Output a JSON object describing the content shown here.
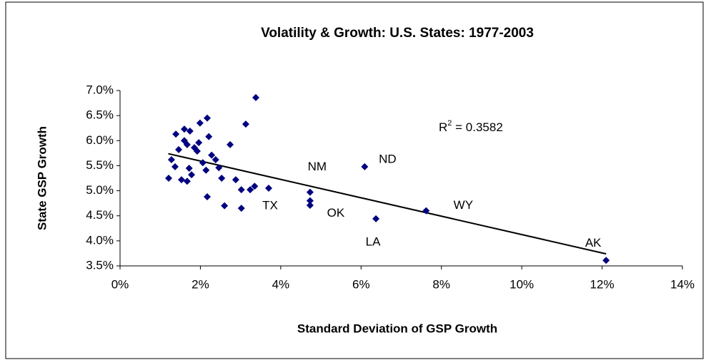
{
  "chart_data": {
    "type": "scatter",
    "title": "Volatility & Growth:  U.S. States:  1977-2003",
    "x_label": "Standard Deviation of GSP Growth",
    "y_label": "State GSP Growth",
    "color": "#000080",
    "x": [
      1.21,
      1.39,
      1.6,
      1.28,
      1.37,
      1.46,
      1.53,
      1.67,
      1.67,
      1.78,
      1.72,
      1.85,
      1.96,
      1.99,
      2.17,
      2.21,
      2.06,
      2.14,
      2.17,
      2.28,
      2.38,
      2.46,
      2.53,
      2.6,
      2.74,
      2.88,
      3.02,
      3.02,
      3.13,
      3.24,
      3.35,
      3.38,
      3.7,
      4.73,
      4.73,
      4.73,
      6.09,
      6.37,
      7.62,
      12.1,
      1.6,
      1.74,
      1.92
    ],
    "y": [
      5.25,
      6.13,
      6.23,
      5.62,
      5.48,
      5.82,
      5.22,
      5.19,
      5.92,
      5.32,
      5.45,
      5.86,
      5.96,
      6.35,
      6.45,
      6.08,
      5.56,
      5.41,
      4.88,
      5.71,
      5.62,
      5.46,
      5.25,
      4.7,
      5.92,
      5.22,
      4.65,
      5.02,
      6.33,
      5.02,
      5.09,
      6.86,
      5.05,
      4.97,
      4.8,
      4.71,
      5.48,
      4.44,
      4.6,
      3.61,
      6.0,
      6.19,
      5.79
    ],
    "point_labels": [
      null,
      null,
      null,
      null,
      null,
      null,
      null,
      null,
      null,
      null,
      null,
      null,
      null,
      null,
      null,
      null,
      null,
      null,
      null,
      null,
      null,
      null,
      null,
      null,
      null,
      null,
      null,
      null,
      null,
      null,
      null,
      null,
      "TX",
      "NM",
      "OK",
      null,
      "ND",
      "LA",
      "WY",
      "AK",
      null,
      null,
      null
    ],
    "trendline": {
      "color": "#000000",
      "x": [
        1.2,
        12.1
      ],
      "y": [
        5.74,
        3.74
      ]
    },
    "r_squared": {
      "symbol": "R",
      "exponent": "2",
      "text": " = 0.3582"
    },
    "xlim": [
      0,
      14
    ],
    "ylim": [
      3.5,
      7.0
    ],
    "xticks": [
      {
        "value": 0,
        "label": "0%"
      },
      {
        "value": 2,
        "label": "2%"
      },
      {
        "value": 4,
        "label": "4%"
      },
      {
        "value": 6,
        "label": "6%"
      },
      {
        "value": 8,
        "label": "8%"
      },
      {
        "value": 10,
        "label": "10%"
      },
      {
        "value": 12,
        "label": "12%"
      },
      {
        "value": 14,
        "label": "14%"
      }
    ],
    "yticks": [
      {
        "value": 3.5,
        "label": "3.5%"
      },
      {
        "value": 4.0,
        "label": "4.0%"
      },
      {
        "value": 4.5,
        "label": "4.5%"
      },
      {
        "value": 5.0,
        "label": "5.0%"
      },
      {
        "value": 5.5,
        "label": "5.5%"
      },
      {
        "value": 6.0,
        "label": "6.0%"
      },
      {
        "value": 6.5,
        "label": "6.5%"
      },
      {
        "value": 7.0,
        "label": "7.0%"
      }
    ],
    "grid": false
  }
}
